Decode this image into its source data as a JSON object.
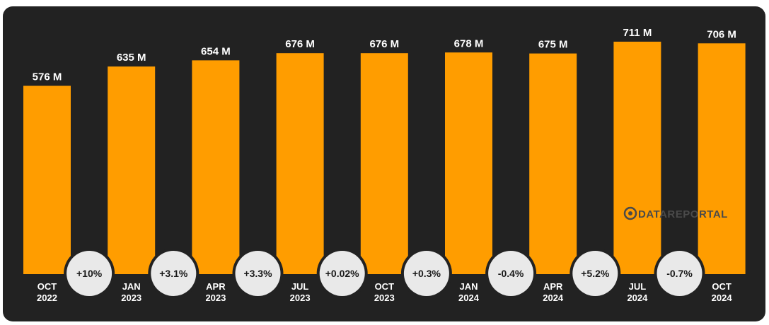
{
  "chart_data": {
    "type": "bar",
    "title": "",
    "xlabel": "",
    "ylabel": "",
    "categories": [
      [
        "OCT",
        "2022"
      ],
      [
        "JAN",
        "2023"
      ],
      [
        "APR",
        "2023"
      ],
      [
        "JUL",
        "2023"
      ],
      [
        "OCT",
        "2023"
      ],
      [
        "JAN",
        "2024"
      ],
      [
        "APR",
        "2024"
      ],
      [
        "JUL",
        "2024"
      ],
      [
        "OCT",
        "2024"
      ]
    ],
    "values": [
      576,
      635,
      654,
      676,
      676,
      678,
      675,
      711,
      706
    ],
    "value_labels": [
      "576 M",
      "635 M",
      "654 M",
      "676 M",
      "676 M",
      "678 M",
      "675 M",
      "711 M",
      "706 M"
    ],
    "changes": [
      "+10%",
      "+3.1%",
      "+3.3%",
      "+0.02%",
      "+0.3%",
      "-0.4%",
      "+5.2%",
      "-0.7%"
    ],
    "ylim": [
      0,
      720
    ],
    "grid": false,
    "legend": "none"
  },
  "colors": {
    "background": "#222222",
    "bar": "#ff9d00",
    "text": "#ffffff",
    "bubble": "#e9e9e9",
    "bubble_text": "#1a1a1a",
    "watermark": "#4a4a4a"
  },
  "watermark": {
    "icon": "datareportal-logo-icon",
    "text": "DATAREPORTAL"
  }
}
